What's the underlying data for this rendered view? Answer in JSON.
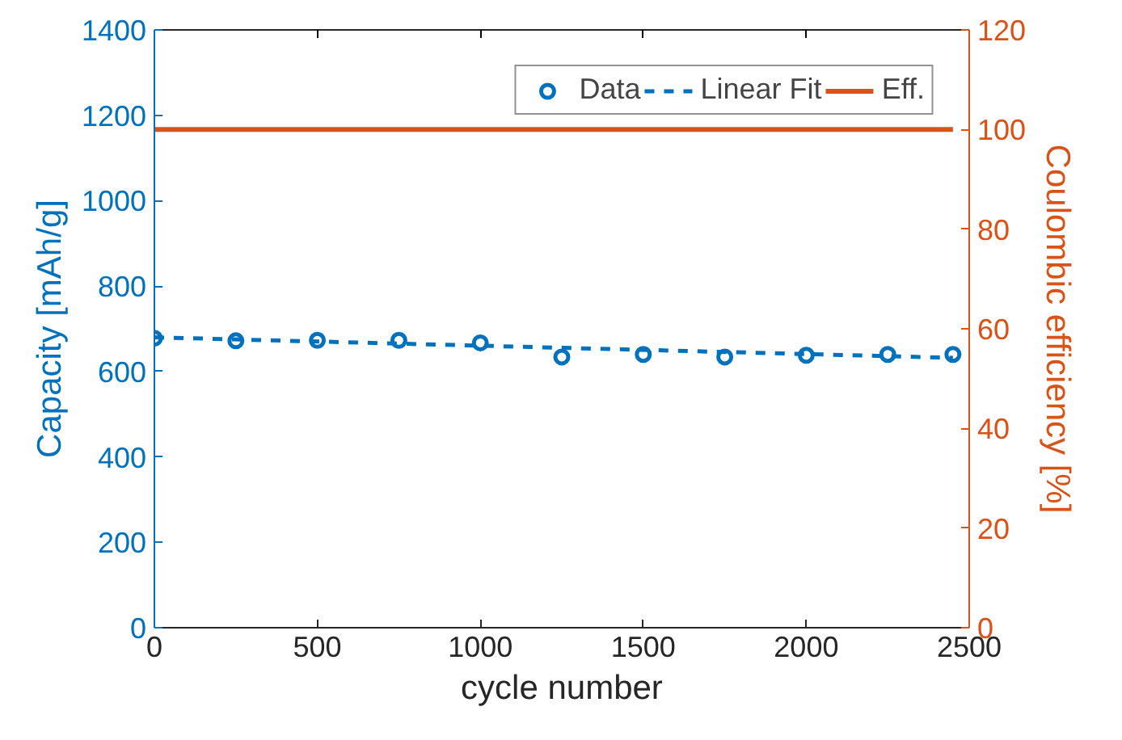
{
  "chart_data": {
    "type": "line",
    "xlabel": "cycle number",
    "ylabel": "Capacity [mAh/g]",
    "y2label": "Coulombic efficiency [%]",
    "xlim": [
      0,
      2500
    ],
    "xticks": [
      0,
      500,
      1000,
      1500,
      2000,
      2500
    ],
    "ylim": [
      0,
      1400
    ],
    "yticks": [
      0,
      200,
      400,
      600,
      800,
      1000,
      1200,
      1400
    ],
    "y2lim": [
      0,
      120
    ],
    "y2ticks": [
      0,
      20,
      40,
      60,
      80,
      100,
      120
    ],
    "grid": false,
    "legend": "top right",
    "series": [
      {
        "name": "Data",
        "type": "scatter",
        "marker": "circle",
        "color": "#0072bd",
        "x": [
          0,
          250,
          500,
          750,
          1000,
          1250,
          1500,
          1750,
          2000,
          2250,
          2450
        ],
        "values": [
          678,
          672,
          673,
          673,
          667,
          634,
          640,
          634,
          638,
          640,
          640
        ]
      },
      {
        "name": "Linear Fit",
        "line_style": "dashed",
        "color": "#0072bd",
        "x": [
          0,
          2450
        ],
        "values": [
          680,
          632
        ]
      },
      {
        "name": "Eff.",
        "line_style": "solid",
        "axis": "y2",
        "color": "#d95319",
        "x": [
          0,
          2450
        ],
        "values": [
          100,
          100
        ]
      }
    ]
  }
}
